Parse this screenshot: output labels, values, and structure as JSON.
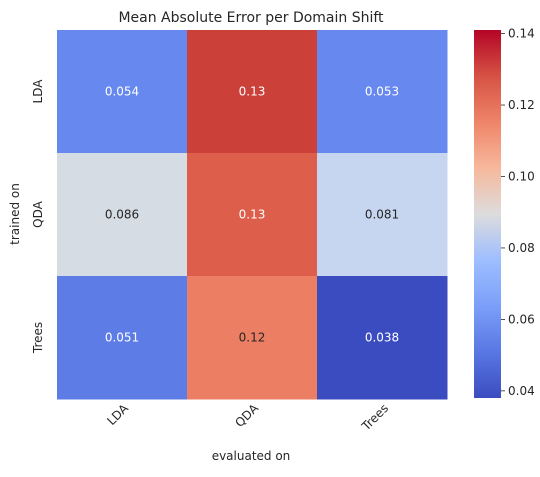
{
  "chart_data": {
    "type": "heatmap",
    "title": "Mean Absolute Error per Domain Shift",
    "xlabel": "evaluated on",
    "ylabel": "trained on",
    "x_categories": [
      "LDA",
      "QDA",
      "Trees"
    ],
    "y_categories": [
      "LDA",
      "QDA",
      "Trees"
    ],
    "values": [
      [
        0.054,
        0.13,
        0.053
      ],
      [
        0.086,
        0.13,
        0.081
      ],
      [
        0.051,
        0.12,
        0.038
      ]
    ],
    "cell_labels": [
      [
        "0.054",
        "0.13",
        "0.053"
      ],
      [
        "0.086",
        "0.13",
        "0.081"
      ],
      [
        "0.051",
        "0.12",
        "0.038"
      ]
    ],
    "colormap": "coolwarm",
    "cell_colors": [
      [
        "#6788ee",
        "#cc403a",
        "#6788ee"
      ],
      [
        "#d6dce4",
        "#dd5f4b",
        "#c6d6f1"
      ],
      [
        "#5d7ce6",
        "#ec7f63",
        "#3b4cc0"
      ]
    ],
    "colorbar": {
      "range": [
        0.038,
        0.141
      ],
      "ticks": [
        0.04,
        0.06,
        0.08,
        0.1,
        0.12,
        0.14
      ],
      "tick_labels": [
        "0.04",
        "0.06",
        "0.08",
        "0.10",
        "0.12",
        "0.14"
      ]
    }
  }
}
